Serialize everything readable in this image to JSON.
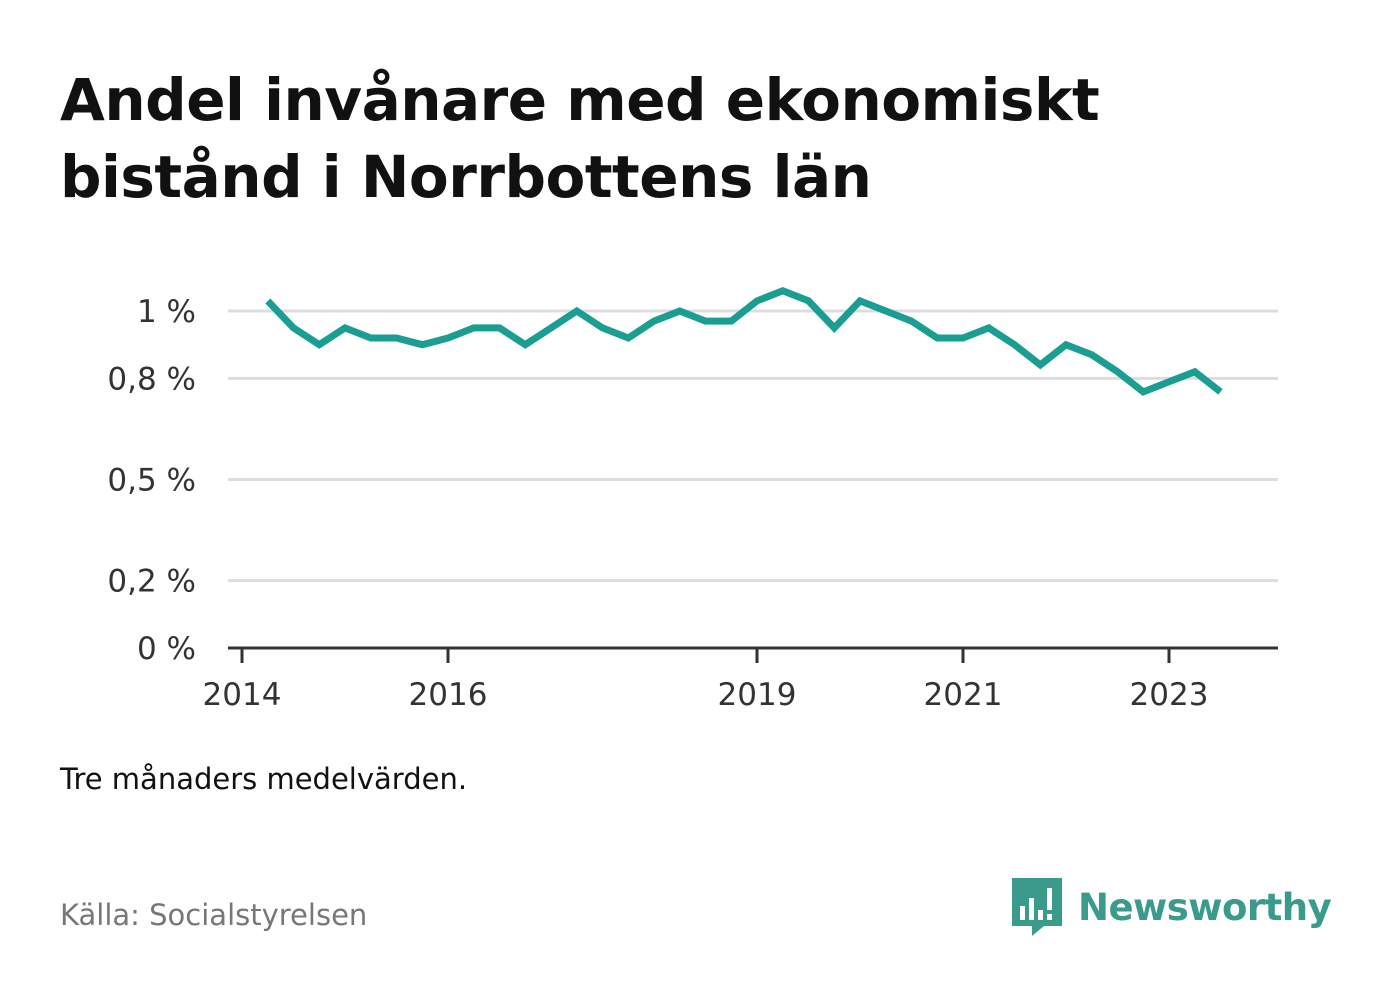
{
  "title_line1": "Andel invånare med ekonomiskt",
  "title_line2": "bistånd i Norrbottens län",
  "note": "Tre månaders medelvärden.",
  "source": "Källa: Socialstyrelsen",
  "brand": "Newsworthy",
  "colors": {
    "line": "#1a9e92",
    "grid": "#dddddd",
    "axis": "#333333",
    "brand": "#3a9a8c"
  },
  "chart_data": {
    "type": "line",
    "title": "Andel invånare med ekonomiskt bistånd i Norrbottens län",
    "xlabel": "",
    "ylabel": "",
    "x": [
      2014.25,
      2014.5,
      2014.75,
      2015.0,
      2015.25,
      2015.5,
      2015.75,
      2016.0,
      2016.25,
      2016.5,
      2016.75,
      2017.0,
      2017.25,
      2017.5,
      2017.75,
      2018.0,
      2018.25,
      2018.5,
      2018.75,
      2019.0,
      2019.25,
      2019.5,
      2019.75,
      2020.0,
      2020.25,
      2020.5,
      2020.75,
      2021.0,
      2021.25,
      2021.5,
      2021.75,
      2022.0,
      2022.25,
      2022.5,
      2022.75,
      2023.0,
      2023.25,
      2023.5
    ],
    "values": [
      1.03,
      0.95,
      0.9,
      0.95,
      0.92,
      0.92,
      0.9,
      0.92,
      0.95,
      0.95,
      0.9,
      0.95,
      1.0,
      0.95,
      0.92,
      0.97,
      1.0,
      0.97,
      0.97,
      1.03,
      1.06,
      1.03,
      0.95,
      1.03,
      1.0,
      0.97,
      0.92,
      0.92,
      0.95,
      0.9,
      0.84,
      0.9,
      0.87,
      0.82,
      0.76,
      0.79,
      0.82,
      0.76
    ],
    "ylim": [
      0,
      1.1
    ],
    "y_ticks": [
      0,
      0.2,
      0.5,
      0.8,
      1.0
    ],
    "y_tick_labels": [
      "0 %",
      "0,2 %",
      "0,5 %",
      "0,8 %",
      "1 %"
    ],
    "x_ticks": [
      2014,
      2016,
      2019,
      2021,
      2023
    ],
    "x_tick_labels": [
      "2014",
      "2016",
      "2019",
      "2021",
      "2023"
    ],
    "grid": true,
    "legend": "none"
  }
}
